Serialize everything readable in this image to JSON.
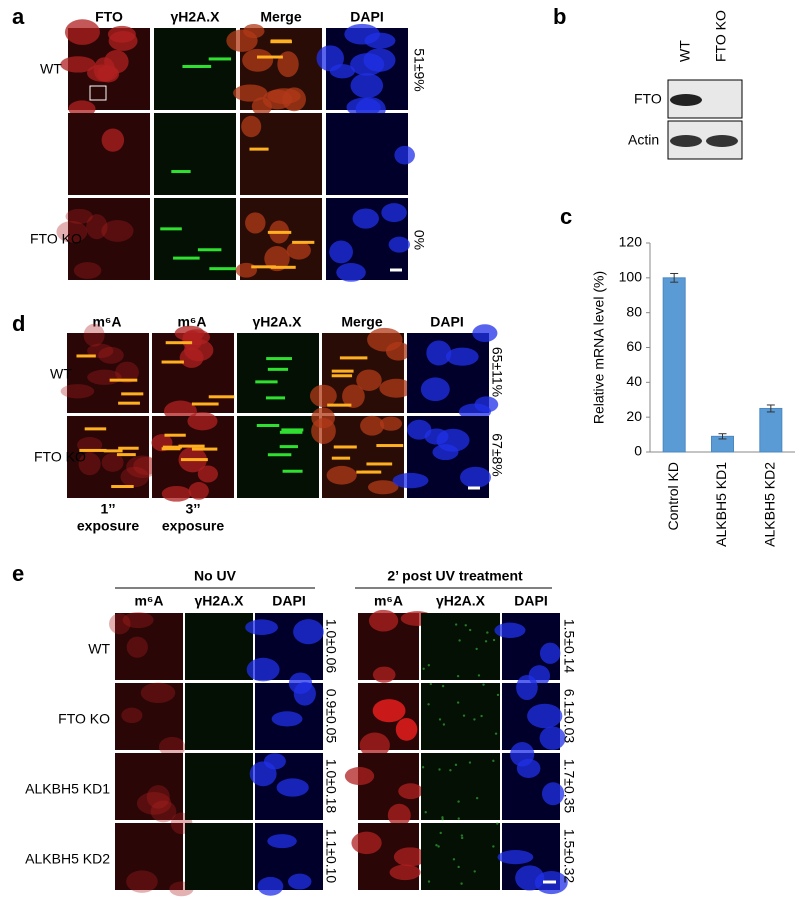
{
  "panels": {
    "a": {
      "label": "a",
      "columns": [
        "FTO",
        "γH2A.X",
        "Merge",
        "DAPI"
      ],
      "rows": [
        "WT",
        "FTO KO"
      ],
      "quantification": [
        "51±9%",
        "0%"
      ]
    },
    "b": {
      "label": "b",
      "lanes": [
        "WT",
        "FTO KO"
      ],
      "bands": [
        "FTO",
        "Actin"
      ]
    },
    "c": {
      "label": "c"
    },
    "d": {
      "label": "d",
      "columns": [
        "m⁶A",
        "m⁶A",
        "γH2A.X",
        "Merge",
        "DAPI"
      ],
      "rows": [
        "WT",
        "FTO KO"
      ],
      "quantification": [
        "65±11%",
        "67±8%"
      ],
      "exposures": [
        [
          "1’’",
          "exposure"
        ],
        [
          "3’’",
          "exposure"
        ]
      ]
    },
    "e": {
      "label": "e",
      "groups": [
        "No UV",
        "2’ post UV treatment"
      ],
      "columns": [
        "m⁶A",
        "γH2A.X",
        "DAPI"
      ],
      "rows": [
        "WT",
        "FTO KO",
        "ALKBH5 KD1",
        "ALKBH5 KD2"
      ],
      "quantification_no_uv": [
        "1.0±0.06",
        "0.9±0.05",
        "1.0±0.18",
        "1.1±0.10"
      ],
      "quantification_uv": [
        "1.5±0.14",
        "6.1±0.03",
        "1.7±0.35",
        "1.5±0.32"
      ]
    }
  },
  "chart_data": {
    "type": "bar",
    "ylabel": "Relative mRNA level (%)",
    "categories": [
      "Control KD",
      "ALKBH5 KD1",
      "ALKBH5 KD2"
    ],
    "values": [
      100,
      9,
      25
    ],
    "errors": [
      2.5,
      1.5,
      2
    ],
    "color": "#5b9bd5",
    "ylim": [
      0,
      120
    ],
    "yticks": [
      0,
      20,
      40,
      60,
      80,
      100,
      120
    ]
  }
}
